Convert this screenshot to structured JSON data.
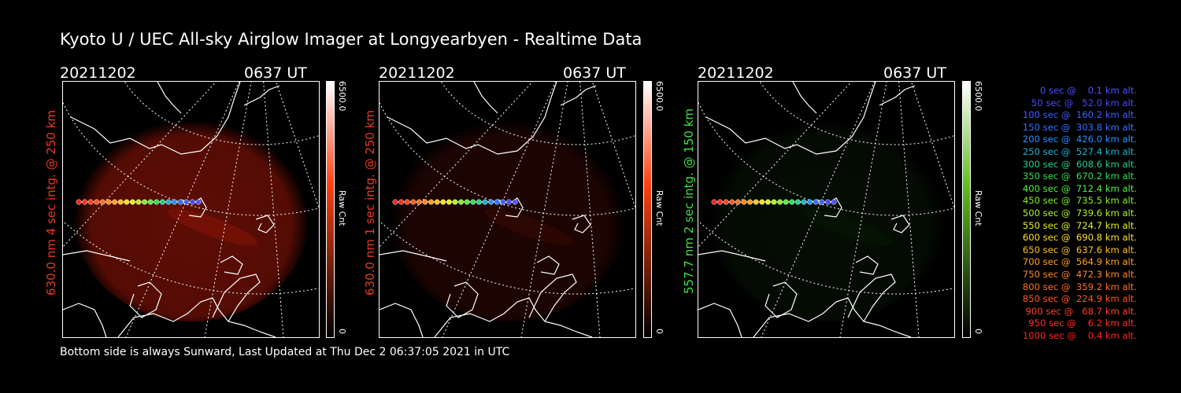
{
  "title": "Kyoto U / UEC All-sky Airglow Imager at Longyearbyen - Realtime Data",
  "panels": [
    {
      "date": "20211202",
      "time": "0637 UT",
      "label": "630.0 nm 4 sec intg. @ 250 km",
      "label_color": "#e83a20",
      "cbar_max": "6500.0",
      "cbar_min": "0",
      "cbar_unit": "Raw Cnt",
      "cbar_color": "#ff4010",
      "intensity": 0.55,
      "glow": "#a81808"
    },
    {
      "date": "20211202",
      "time": "0637 UT",
      "label": "630.0 nm 1 sec intg. @ 250 km",
      "label_color": "#e83a20",
      "cbar_max": "6500.0",
      "cbar_min": "0",
      "cbar_unit": "Raw Cnt",
      "cbar_color": "#ff4010",
      "intensity": 0.18,
      "glow": "#a81808"
    },
    {
      "date": "20211202",
      "time": "0637 UT",
      "label": "557.7 nm 2 sec intg. @ 150 km",
      "label_color": "#40e040",
      "cbar_max": "6500.0",
      "cbar_min": "0",
      "cbar_unit": "Raw Cnt",
      "cbar_color": "#60c020",
      "intensity": 0.15,
      "glow": "#1a5a10"
    }
  ],
  "legend": [
    {
      "text": "  0 sec @    0.1 km alt.",
      "color": "#5050ff"
    },
    {
      "text": " 50 sec @   52.0 km alt.",
      "color": "#4848ff"
    },
    {
      "text": "100 sec @  160.2 km alt.",
      "color": "#3a60ff"
    },
    {
      "text": "150 sec @  303.8 km alt.",
      "color": "#3070ff"
    },
    {
      "text": "200 sec @  426.0 km alt.",
      "color": "#2a90ff"
    },
    {
      "text": "250 sec @  527.4 km alt.",
      "color": "#20b0d0"
    },
    {
      "text": "300 sec @  608.6 km alt.",
      "color": "#20d090"
    },
    {
      "text": "350 sec @  670.2 km alt.",
      "color": "#30e050"
    },
    {
      "text": "400 sec @  712.4 km alt.",
      "color": "#50f040"
    },
    {
      "text": "450 sec @  735.5 km alt.",
      "color": "#80f030"
    },
    {
      "text": "500 sec @  739.6 km alt.",
      "color": "#b0f020"
    },
    {
      "text": "550 sec @  724.7 km alt.",
      "color": "#e0f020"
    },
    {
      "text": "600 sec @  690.8 km alt.",
      "color": "#ffe020"
    },
    {
      "text": "650 sec @  637.6 km alt.",
      "color": "#ffc020"
    },
    {
      "text": "700 sec @  564.9 km alt.",
      "color": "#ffa020"
    },
    {
      "text": "750 sec @  472.3 km alt.",
      "color": "#ff8820"
    },
    {
      "text": "800 sec @  359.2 km alt.",
      "color": "#ff7020"
    },
    {
      "text": "850 sec @  224.9 km alt.",
      "color": "#ff5820"
    },
    {
      "text": "900 sec @   68.7 km alt.",
      "color": "#ff4020"
    },
    {
      "text": "950 sec @    6.2 km alt.",
      "color": "#ff3020"
    },
    {
      "text": "1000 sec @    0.4 km alt.",
      "color": "#ff2020"
    }
  ],
  "footer": "Bottom side is always Sunward, Last Updated at Thu Dec  2 06:37:05 2021 in UTC"
}
